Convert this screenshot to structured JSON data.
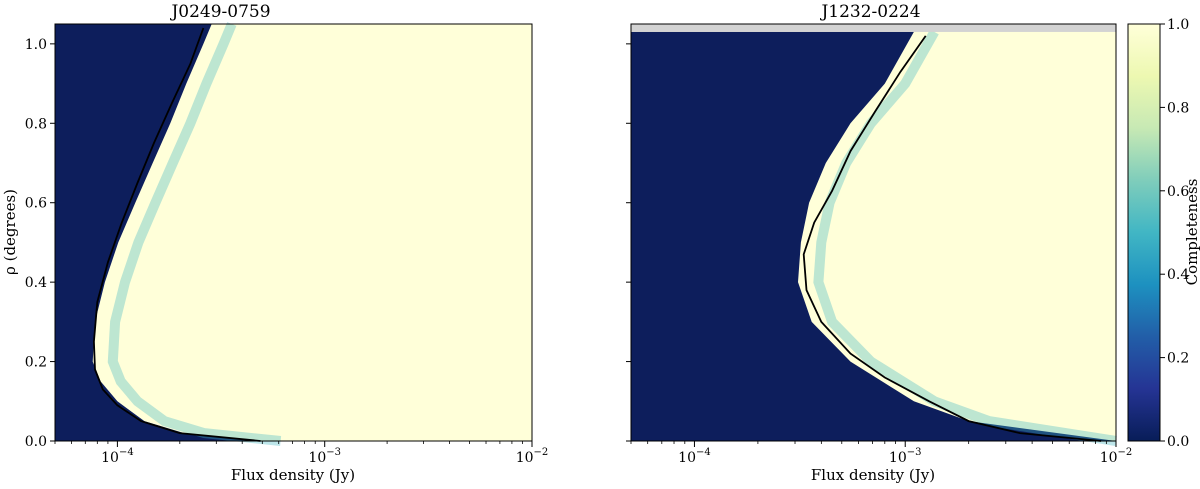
{
  "chart_data": [
    {
      "type": "heatmap",
      "title": "J0249-0759",
      "xlabel": "Flux density (Jy)",
      "ylabel": "ρ (degrees)",
      "xscale": "log",
      "xlim": [
        5e-05,
        0.01
      ],
      "ylim": [
        0,
        1.05
      ],
      "x_ticks": [
        {
          "base": "10",
          "exp": "−4",
          "value": 0.0001
        },
        {
          "base": "10",
          "exp": "−3",
          "value": 0.001
        },
        {
          "base": "10",
          "exp": "−2",
          "value": 0.01
        }
      ],
      "y_ticks": [
        "0.0",
        "0.2",
        "0.4",
        "0.6",
        "0.8",
        "1.0"
      ],
      "grid": false,
      "fill_color": "#ffffd9",
      "shaded_region": {
        "color": "#0d1e5c",
        "boundary": [
          {
            "rho": 1.05,
            "flux": 0.000285
          },
          {
            "rho": 1.0,
            "flux": 0.00026
          },
          {
            "rho": 0.9,
            "flux": 0.000215
          },
          {
            "rho": 0.8,
            "flux": 0.00018
          },
          {
            "rho": 0.7,
            "flux": 0.000148
          },
          {
            "rho": 0.6,
            "flux": 0.000122
          },
          {
            "rho": 0.5,
            "flux": 0.000101
          },
          {
            "rho": 0.4,
            "flux": 8.7e-05
          },
          {
            "rho": 0.3,
            "flux": 7.8e-05
          },
          {
            "rho": 0.2,
            "flux": 7.6e-05
          },
          {
            "rho": 0.15,
            "flux": 8.3e-05
          },
          {
            "rho": 0.1,
            "flux": 0.0001
          },
          {
            "rho": 0.05,
            "flux": 0.000135
          },
          {
            "rho": 0.02,
            "flux": 0.00021
          },
          {
            "rho": 0.0,
            "flux": 0.00049
          }
        ]
      },
      "contour_50pct": [
        {
          "flux": 0.00026,
          "rho": 1.04
        },
        {
          "flux": 0.000225,
          "rho": 0.95
        },
        {
          "flux": 0.000183,
          "rho": 0.85
        },
        {
          "flux": 0.00015,
          "rho": 0.75
        },
        {
          "flux": 0.000125,
          "rho": 0.65
        },
        {
          "flux": 0.000105,
          "rho": 0.55
        },
        {
          "flux": 9e-05,
          "rho": 0.45
        },
        {
          "flux": 8e-05,
          "rho": 0.35
        },
        {
          "flux": 7.7e-05,
          "rho": 0.25
        },
        {
          "flux": 7.8e-05,
          "rho": 0.18
        },
        {
          "flux": 8.5e-05,
          "rho": 0.13
        },
        {
          "flux": 0.0001,
          "rho": 0.09
        },
        {
          "flux": 0.00013,
          "rho": 0.05
        },
        {
          "flux": 0.0002,
          "rho": 0.02
        },
        {
          "flux": 0.00049,
          "rho": 0.0
        }
      ]
    },
    {
      "type": "heatmap",
      "title": "J1232-0224",
      "xlabel": "Flux density (Jy)",
      "xscale": "log",
      "xlim": [
        5e-05,
        0.01
      ],
      "ylim": [
        0,
        1.05
      ],
      "x_ticks": [
        {
          "base": "10",
          "exp": "−4",
          "value": 0.0001
        },
        {
          "base": "10",
          "exp": "−3",
          "value": 0.001
        },
        {
          "base": "10",
          "exp": "−2",
          "value": 0.01
        }
      ],
      "grid": false,
      "fill_color": "#ffffd9",
      "top_band": {
        "rho_min": 1.03,
        "rho_max": 1.05,
        "color": "#d3d3d3"
      },
      "shaded_region": {
        "color": "#0d1e5c",
        "boundary": [
          {
            "rho": 1.03,
            "flux": 0.0011
          },
          {
            "rho": 0.9,
            "flux": 0.0008
          },
          {
            "rho": 0.8,
            "flux": 0.00055
          },
          {
            "rho": 0.7,
            "flux": 0.00042
          },
          {
            "rho": 0.6,
            "flux": 0.00035
          },
          {
            "rho": 0.5,
            "flux": 0.00032
          },
          {
            "rho": 0.4,
            "flux": 0.00031
          },
          {
            "rho": 0.3,
            "flux": 0.00036
          },
          {
            "rho": 0.2,
            "flux": 0.00055
          },
          {
            "rho": 0.1,
            "flux": 0.0011
          },
          {
            "rho": 0.05,
            "flux": 0.002
          },
          {
            "rho": 0.0,
            "flux": 0.01
          }
        ]
      },
      "contour_50pct": [
        {
          "flux": 0.00125,
          "rho": 1.02
        },
        {
          "flux": 0.00095,
          "rho": 0.93
        },
        {
          "flux": 0.00072,
          "rho": 0.83
        },
        {
          "flux": 0.00055,
          "rho": 0.73
        },
        {
          "flux": 0.00045,
          "rho": 0.63
        },
        {
          "flux": 0.00037,
          "rho": 0.55
        },
        {
          "flux": 0.00033,
          "rho": 0.47
        },
        {
          "flux": 0.00034,
          "rho": 0.38
        },
        {
          "flux": 0.0004,
          "rho": 0.3
        },
        {
          "flux": 0.00055,
          "rho": 0.22
        },
        {
          "flux": 0.0008,
          "rho": 0.16
        },
        {
          "flux": 0.0013,
          "rho": 0.1
        },
        {
          "flux": 0.002,
          "rho": 0.05
        },
        {
          "flux": 0.0035,
          "rho": 0.02
        },
        {
          "flux": 0.0085,
          "rho": 0.0
        }
      ]
    }
  ],
  "colorbar": {
    "label": "Completeness",
    "range": [
      0,
      1
    ],
    "ticks": [
      "0.0",
      "0.2",
      "0.4",
      "0.6",
      "0.8",
      "1.0"
    ],
    "colormap": [
      "#081d58",
      "#253494",
      "#225ea8",
      "#1d91c0",
      "#41b6c4",
      "#7fcdbb",
      "#c7e9b4",
      "#edf8b1",
      "#ffffd9"
    ]
  }
}
